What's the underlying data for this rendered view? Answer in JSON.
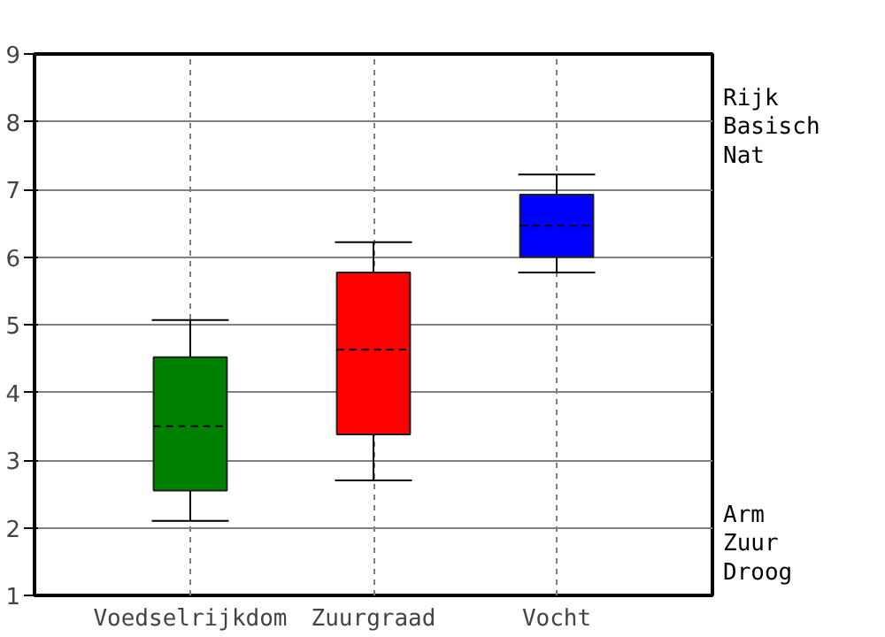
{
  "chart_data": {
    "type": "box",
    "categories": [
      "Voedselrijkdom",
      "Zuurgraad",
      "Vocht"
    ],
    "series": [
      {
        "colors": [
          "#008000",
          "#ff0000",
          "#0000ff"
        ],
        "boxes": [
          {
            "low": 2.1,
            "q1": 2.55,
            "median": 3.5,
            "q3": 4.52,
            "high": 5.07
          },
          {
            "low": 2.7,
            "q1": 3.38,
            "median": 4.63,
            "q3": 5.77,
            "high": 6.22
          },
          {
            "low": 5.77,
            "q1": 6.0,
            "median": 6.46,
            "q3": 6.92,
            "high": 7.22
          }
        ]
      }
    ],
    "ylim": [
      1,
      9
    ],
    "yticks": [
      1,
      2,
      3,
      4,
      5,
      6,
      7,
      8,
      9
    ],
    "annotations": [
      "Rijk",
      "Basisch",
      "Nat",
      "Arm",
      "Zuur",
      "Droog"
    ],
    "grid": true
  }
}
